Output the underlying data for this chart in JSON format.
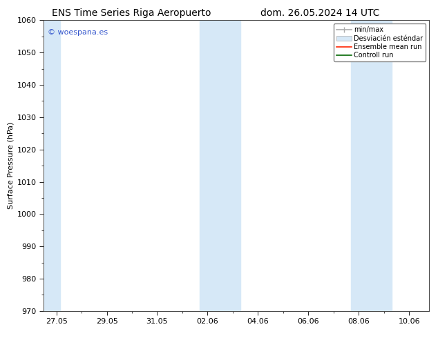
{
  "title_left": "ENS Time Series Riga Aeropuerto",
  "title_right": "dom. 26.05.2024 14 UTC",
  "ylabel": "Surface Pressure (hPa)",
  "ylim": [
    970,
    1060
  ],
  "yticks": [
    970,
    980,
    990,
    1000,
    1010,
    1020,
    1030,
    1040,
    1050,
    1060
  ],
  "xtick_labels": [
    "27.05",
    "29.05",
    "31.05",
    "02.06",
    "04.06",
    "06.06",
    "08.06",
    "10.06"
  ],
  "xtick_positions": [
    0,
    2,
    4,
    6,
    8,
    10,
    12,
    14
  ],
  "xlim": [
    -0.5,
    14.8
  ],
  "shaded_regions": [
    {
      "x_start": -0.5,
      "x_end": 0.15
    },
    {
      "x_start": 5.7,
      "x_end": 7.3
    },
    {
      "x_start": 11.7,
      "x_end": 13.3
    }
  ],
  "shaded_color": "#d6e8f7",
  "plot_bg_color": "#ffffff",
  "background_color": "#ffffff",
  "watermark_text": "© woespana.es",
  "watermark_color": "#3355cc",
  "legend_minmax_color": "#aaaaaa",
  "legend_band_facecolor": "#d6e8f7",
  "legend_band_edgecolor": "#aaaaaa",
  "legend_mean_color": "#ff2200",
  "legend_control_color": "#006600",
  "title_fontsize": 10,
  "ylabel_fontsize": 8,
  "tick_fontsize": 8,
  "watermark_fontsize": 8,
  "legend_fontsize": 7
}
